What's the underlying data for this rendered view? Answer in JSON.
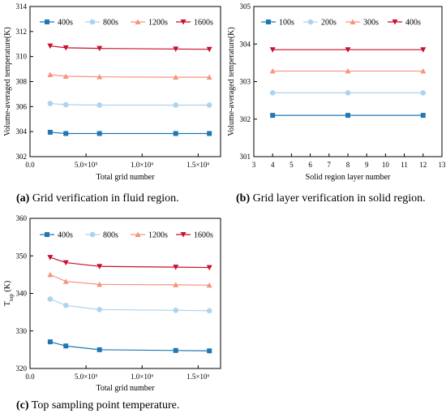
{
  "chart_data": [
    {
      "type": "line",
      "caption_bold": "(a)",
      "caption_text": " Grid verification in fluid region.",
      "xlabel": "Total grid number",
      "ylabel": "Volume-averaged temperature(K)",
      "xlim": [
        0,
        1700000
      ],
      "ylim": [
        302,
        314
      ],
      "xticks": [
        {
          "v": 0,
          "t": "0.0"
        },
        {
          "v": 500000,
          "t": "5.0×10⁵"
        },
        {
          "v": 1000000,
          "t": "1.0×10⁶"
        },
        {
          "v": 1500000,
          "t": "1.5×10⁶"
        }
      ],
      "yticks": [
        {
          "v": 302,
          "t": "302"
        },
        {
          "v": 304,
          "t": "304"
        },
        {
          "v": 306,
          "t": "306"
        },
        {
          "v": 308,
          "t": "308"
        },
        {
          "v": 310,
          "t": "310"
        },
        {
          "v": 312,
          "t": "312"
        },
        {
          "v": 314,
          "t": "314"
        }
      ],
      "x": [
        180000,
        320000,
        620000,
        1300000,
        1600000
      ],
      "series": [
        {
          "name": "400s",
          "color": "#1f77b4",
          "marker": "square",
          "values": [
            303.95,
            303.85,
            303.85,
            303.85,
            303.85
          ]
        },
        {
          "name": "800s",
          "color": "#aed3ee",
          "marker": "circle",
          "values": [
            306.25,
            306.15,
            306.12,
            306.12,
            306.12
          ]
        },
        {
          "name": "1200s",
          "color": "#f5947d",
          "marker": "triangle-up",
          "values": [
            308.55,
            308.42,
            308.38,
            308.35,
            308.35
          ]
        },
        {
          "name": "1600s",
          "color": "#c8102e",
          "marker": "triangle-down",
          "values": [
            310.85,
            310.7,
            310.65,
            310.6,
            310.58
          ]
        }
      ]
    },
    {
      "type": "line",
      "caption_bold": "(b)",
      "caption_text": " Grid layer verification in solid region.",
      "xlabel": "Solid region layer number",
      "ylabel": "Volume-averaged temperature(K)",
      "xlim": [
        3,
        13
      ],
      "ylim": [
        301,
        305
      ],
      "xticks": [
        {
          "v": 3,
          "t": "3"
        },
        {
          "v": 4,
          "t": "4"
        },
        {
          "v": 5,
          "t": "5"
        },
        {
          "v": 6,
          "t": "6"
        },
        {
          "v": 7,
          "t": "7"
        },
        {
          "v": 8,
          "t": "8"
        },
        {
          "v": 9,
          "t": "9"
        },
        {
          "v": 10,
          "t": "10"
        },
        {
          "v": 11,
          "t": "11"
        },
        {
          "v": 12,
          "t": "12"
        },
        {
          "v": 13,
          "t": "13"
        }
      ],
      "yticks": [
        {
          "v": 301,
          "t": "301"
        },
        {
          "v": 302,
          "t": "302"
        },
        {
          "v": 303,
          "t": "303"
        },
        {
          "v": 304,
          "t": "304"
        },
        {
          "v": 305,
          "t": "305"
        }
      ],
      "x": [
        4,
        8,
        12
      ],
      "series": [
        {
          "name": "100s",
          "color": "#1f77b4",
          "marker": "square",
          "values": [
            302.1,
            302.1,
            302.1
          ]
        },
        {
          "name": "200s",
          "color": "#aed3ee",
          "marker": "circle",
          "values": [
            302.7,
            302.7,
            302.7
          ]
        },
        {
          "name": "300s",
          "color": "#f5947d",
          "marker": "triangle-up",
          "values": [
            303.28,
            303.28,
            303.28
          ]
        },
        {
          "name": "400s",
          "color": "#c8102e",
          "marker": "triangle-down",
          "values": [
            303.85,
            303.85,
            303.85
          ]
        }
      ]
    },
    {
      "type": "line",
      "caption_bold": "(c)",
      "caption_text": " Top sampling point temperature.",
      "xlabel": "Total grid number",
      "ylabel": "T",
      "ylabel_sub": "top",
      "ylabel_unit": " (K)",
      "xlim": [
        0,
        1700000
      ],
      "ylim": [
        320,
        360
      ],
      "xticks": [
        {
          "v": 0,
          "t": "0.0"
        },
        {
          "v": 500000,
          "t": "5.0×10⁵"
        },
        {
          "v": 1000000,
          "t": "1.0×10⁶"
        },
        {
          "v": 1500000,
          "t": "1.5×10⁶"
        }
      ],
      "yticks": [
        {
          "v": 320,
          "t": "320"
        },
        {
          "v": 330,
          "t": "330"
        },
        {
          "v": 340,
          "t": "340"
        },
        {
          "v": 350,
          "t": "350"
        },
        {
          "v": 360,
          "t": "360"
        }
      ],
      "x": [
        180000,
        320000,
        620000,
        1300000,
        1600000
      ],
      "series": [
        {
          "name": "400s",
          "color": "#1f77b4",
          "marker": "square",
          "values": [
            327.1,
            326.0,
            325.0,
            324.8,
            324.7
          ]
        },
        {
          "name": "800s",
          "color": "#aed3ee",
          "marker": "circle",
          "values": [
            338.5,
            336.8,
            335.7,
            335.5,
            335.4
          ]
        },
        {
          "name": "1200s",
          "color": "#f5947d",
          "marker": "triangle-up",
          "values": [
            345.0,
            343.2,
            342.4,
            342.3,
            342.2
          ]
        },
        {
          "name": "1600s",
          "color": "#c8102e",
          "marker": "triangle-down",
          "values": [
            349.6,
            348.2,
            347.2,
            347.0,
            346.9
          ]
        }
      ]
    }
  ]
}
